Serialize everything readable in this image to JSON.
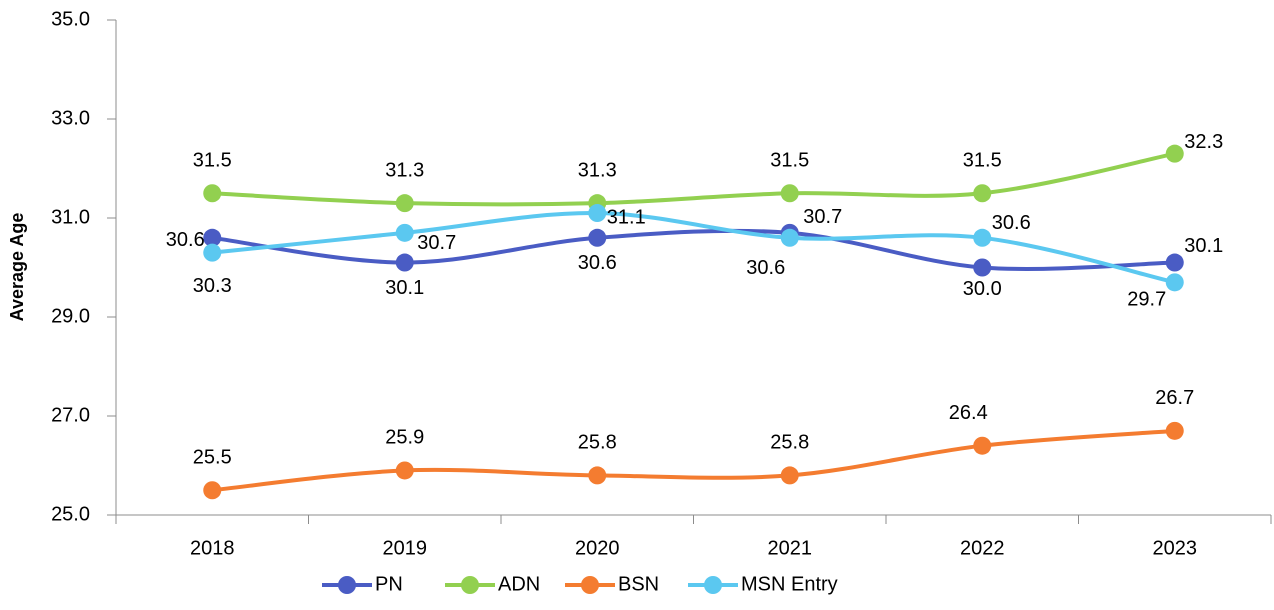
{
  "chart_data": {
    "type": "line",
    "y_label": "Average Age",
    "categories": [
      "2018",
      "2019",
      "2020",
      "2021",
      "2022",
      "2023"
    ],
    "series": [
      {
        "name": "PN",
        "color": "#4a5cc4",
        "values": [
          30.6,
          30.1,
          30.6,
          30.7,
          30.0,
          30.1
        ],
        "value_labels": [
          "30.6",
          "30.1",
          "30.6",
          "30.7",
          "30.0",
          "30.1"
        ]
      },
      {
        "name": "ADN",
        "color": "#92d050",
        "values": [
          31.5,
          31.3,
          31.3,
          31.5,
          31.5,
          32.3
        ],
        "value_labels": [
          "31.5",
          "31.3",
          "31.3",
          "31.5",
          "31.5",
          "32.3"
        ]
      },
      {
        "name": "BSN",
        "color": "#f47c30",
        "values": [
          25.5,
          25.9,
          25.8,
          25.8,
          26.4,
          26.7
        ],
        "value_labels": [
          "25.5",
          "25.9",
          "25.8",
          "25.8",
          "26.4",
          "26.7"
        ]
      },
      {
        "name": "MSN Entry",
        "color": "#5bc8f0",
        "values": [
          30.3,
          30.7,
          31.1,
          30.6,
          30.6,
          29.7
        ],
        "value_labels": [
          "30.3",
          "30.7",
          "31.1",
          "30.6",
          "30.6",
          "29.7"
        ]
      }
    ],
    "ylim": [
      25,
      35
    ],
    "yticks": [
      {
        "value": 25,
        "label": "25.0"
      },
      {
        "value": 27,
        "label": "27.0"
      },
      {
        "value": 29,
        "label": "29.0"
      },
      {
        "value": 31,
        "label": "31.0"
      },
      {
        "value": 33,
        "label": "33.0"
      },
      {
        "value": 35,
        "label": "35.0"
      }
    ],
    "grid": false,
    "legend": "bottom"
  }
}
